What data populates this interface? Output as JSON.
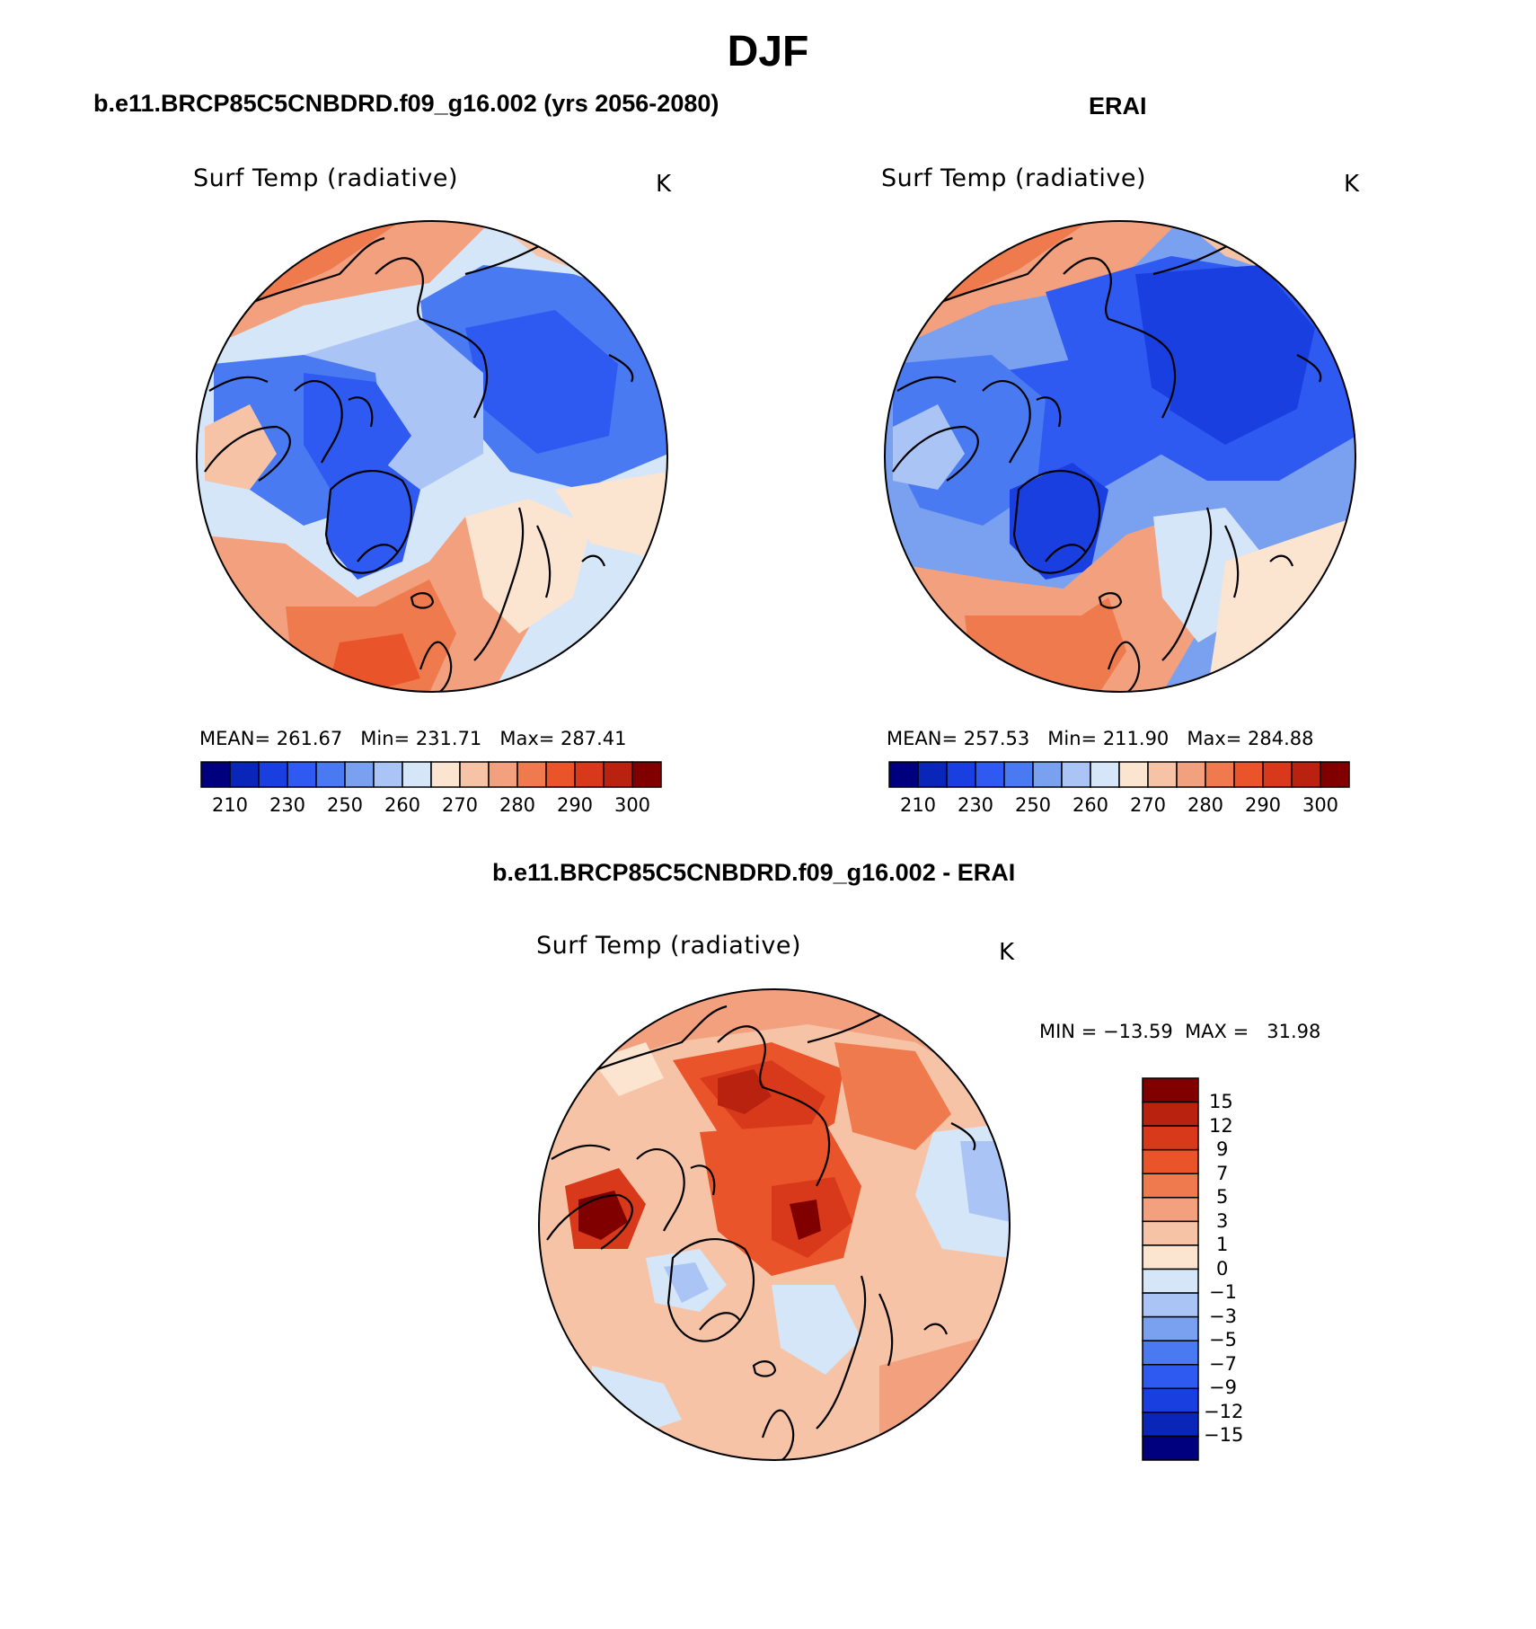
{
  "page": {
    "title": "DJF"
  },
  "panels": [
    {
      "id": "model",
      "title": "b.e11.BRCP85C5CNBDRD.f09_g16.002 (yrs 2056-2080)",
      "subtitle": "Surf Temp (radiative)",
      "units": "K",
      "stats": {
        "mean_label": "MEAN=",
        "mean": "261.67",
        "min_label": "Min=",
        "min": "231.71",
        "max_label": "Max=",
        "max": "287.41"
      },
      "colorbar_ticks": [
        "210",
        "230",
        "250",
        "260",
        "270",
        "280",
        "290",
        "300"
      ]
    },
    {
      "id": "erai",
      "title": "ERAI",
      "subtitle": "Surf Temp (radiative)",
      "units": "K",
      "stats": {
        "mean_label": "MEAN=",
        "mean": "257.53",
        "min_label": "Min=",
        "min": "211.90",
        "max_label": "Max=",
        "max": "284.88"
      },
      "colorbar_ticks": [
        "210",
        "230",
        "250",
        "260",
        "270",
        "280",
        "290",
        "300"
      ]
    },
    {
      "id": "diff",
      "title": "b.e11.BRCP85C5CNBDRD.f09_g16.002 - ERAI",
      "subtitle": "Surf Temp (radiative)",
      "units": "K",
      "stats": {
        "min_label": "MIN =",
        "min": "−13.59",
        "max_label": "MAX =",
        "max": "31.98"
      },
      "colorbar_ticks": [
        "15",
        "12",
        "9",
        "7",
        "5",
        "3",
        "1",
        "0",
        "−1",
        "−3",
        "−5",
        "−7",
        "−9",
        "−12",
        "−15"
      ]
    }
  ],
  "colors": {
    "abs_scale": [
      "#00007f",
      "#0a26b8",
      "#1a3fe0",
      "#2e5af2",
      "#4a7af2",
      "#7aa0f0",
      "#a9c4f5",
      "#d5e6f8",
      "#fbe4d0",
      "#f7c3a6",
      "#f3a07e",
      "#ef7a4e",
      "#e9542a",
      "#d8391a",
      "#b8220e",
      "#800000"
    ],
    "diff_scale": [
      "#800000",
      "#b8220e",
      "#d8391a",
      "#e9542a",
      "#ef7a4e",
      "#f3a07e",
      "#f7c3a6",
      "#fbe4d0",
      "#d5e6f8",
      "#a9c4f5",
      "#7aa0f0",
      "#4a7af2",
      "#2e5af2",
      "#1a3fe0",
      "#0a26b8",
      "#00007f"
    ]
  }
}
